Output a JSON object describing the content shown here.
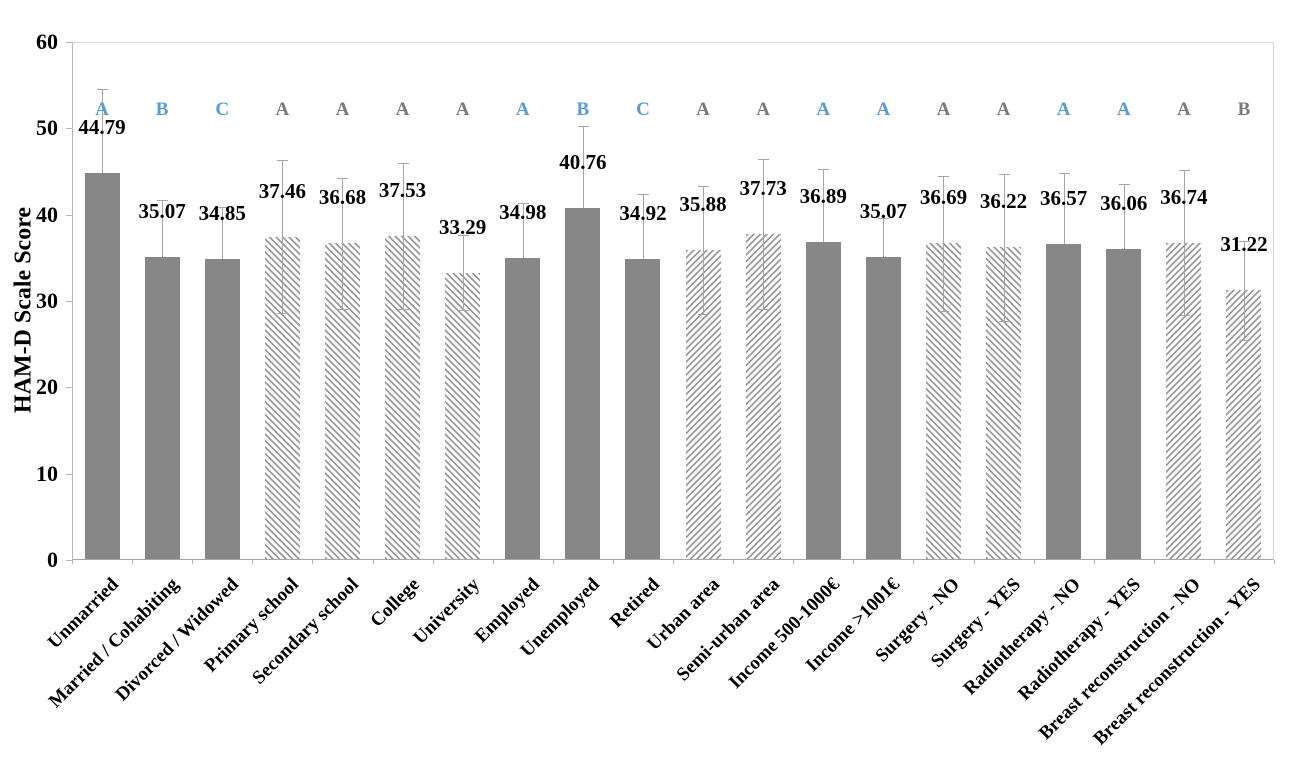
{
  "chart_data": {
    "type": "bar",
    "title": "",
    "xlabel": "",
    "ylabel": "HAM-D Scale Score",
    "ylim": [
      0,
      60
    ],
    "yticks": [
      0,
      10,
      20,
      30,
      40,
      50,
      60
    ],
    "grid": false,
    "legend": false,
    "colors": {
      "solid_fill": "#878787",
      "hatch_stripe": "#9b9b9b",
      "hatch_background": "#ffffff",
      "error_bar": "#a6a6a6",
      "letter_blue": "#5b9bd5",
      "letter_gray": "#7a7a7a",
      "axis_line": "#b7b7b7",
      "plot_border": "#d9d9d9",
      "label_text": "#000000"
    },
    "bars": [
      {
        "category": "Unmarried",
        "value": 44.79,
        "error": 9.8,
        "letter": "A",
        "letter_color": "blue",
        "fill": "solid"
      },
      {
        "category": "Married / Cohabiting",
        "value": 35.07,
        "error": 6.6,
        "letter": "B",
        "letter_color": "blue",
        "fill": "solid"
      },
      {
        "category": "Divorced / Widowed",
        "value": 34.85,
        "error": 6.0,
        "letter": "C",
        "letter_color": "blue",
        "fill": "solid"
      },
      {
        "category": "Primary school",
        "value": 37.46,
        "error": 8.9,
        "letter": "A",
        "letter_color": "gray",
        "fill": "hatch-down"
      },
      {
        "category": "Secondary school",
        "value": 36.68,
        "error": 7.6,
        "letter": "A",
        "letter_color": "gray",
        "fill": "hatch-down"
      },
      {
        "category": "College",
        "value": 37.53,
        "error": 8.4,
        "letter": "A",
        "letter_color": "gray",
        "fill": "hatch-down"
      },
      {
        "category": "University",
        "value": 33.29,
        "error": 4.3,
        "letter": "A",
        "letter_color": "gray",
        "fill": "hatch-down"
      },
      {
        "category": "Employed",
        "value": 34.98,
        "error": 6.4,
        "letter": "A",
        "letter_color": "blue",
        "fill": "solid"
      },
      {
        "category": "Unemployed",
        "value": 40.76,
        "error": 9.5,
        "letter": "B",
        "letter_color": "blue",
        "fill": "solid"
      },
      {
        "category": "Retired",
        "value": 34.92,
        "error": 7.5,
        "letter": "C",
        "letter_color": "blue",
        "fill": "solid"
      },
      {
        "category": "Urban area",
        "value": 35.88,
        "error": 7.4,
        "letter": "A",
        "letter_color": "gray",
        "fill": "hatch-up"
      },
      {
        "category": "Semi-urban area",
        "value": 37.73,
        "error": 8.7,
        "letter": "A",
        "letter_color": "gray",
        "fill": "hatch-up"
      },
      {
        "category": "Income 500-1000€",
        "value": 36.89,
        "error": 8.4,
        "letter": "A",
        "letter_color": "blue",
        "fill": "solid"
      },
      {
        "category": "Income >1001€",
        "value": 35.07,
        "error": 4.6,
        "letter": "A",
        "letter_color": "blue",
        "fill": "solid"
      },
      {
        "category": "Surgery - NO",
        "value": 36.69,
        "error": 7.8,
        "letter": "A",
        "letter_color": "gray",
        "fill": "hatch-down"
      },
      {
        "category": "Surgery - YES",
        "value": 36.22,
        "error": 8.5,
        "letter": "A",
        "letter_color": "gray",
        "fill": "hatch-down"
      },
      {
        "category": "Radiotherapy - NO",
        "value": 36.57,
        "error": 8.2,
        "letter": "A",
        "letter_color": "blue",
        "fill": "solid"
      },
      {
        "category": "Radiotherapy - YES",
        "value": 36.06,
        "error": 7.5,
        "letter": "A",
        "letter_color": "blue",
        "fill": "solid"
      },
      {
        "category": "Breast reconstruction - NO",
        "value": 36.74,
        "error": 8.4,
        "letter": "A",
        "letter_color": "gray",
        "fill": "hatch-up"
      },
      {
        "category": "Breast reconstruction - YES",
        "value": 31.22,
        "error": 5.7,
        "letter": "B",
        "letter_color": "gray",
        "fill": "hatch-up"
      }
    ]
  }
}
